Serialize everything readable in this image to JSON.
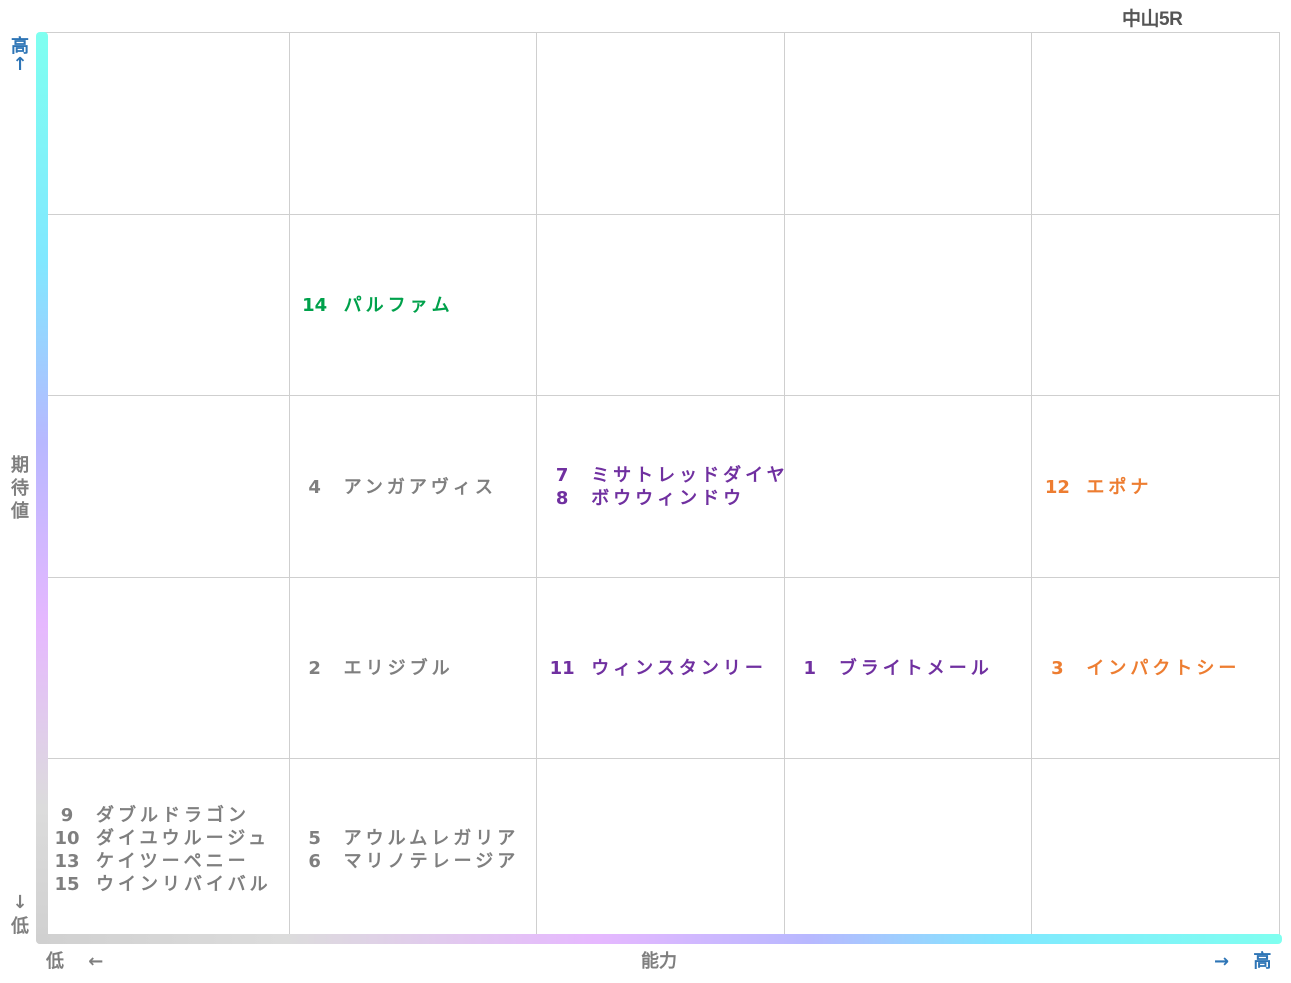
{
  "title": "中山5R",
  "axes": {
    "y_label": "期待値",
    "y_high": "高",
    "y_high_arrow": "↑",
    "y_low": "低",
    "y_low_arrow": "↓",
    "x_label": "能力",
    "x_low": "低",
    "x_low_arrow": "←",
    "x_high": "高",
    "x_high_arrow": "→"
  },
  "colors": {
    "gray": "#7f7f7f",
    "green": "#00a14b",
    "purple": "#7030a0",
    "orange": "#ed7d31",
    "axis_blue": "#2e75b6",
    "grid": "#cfcfcf"
  },
  "chart_data": {
    "type": "table",
    "x_axis": "能力",
    "y_axis": "期待値",
    "columns": 5,
    "rows": 5,
    "points": [
      {
        "num": "14",
        "name": "パルファム",
        "x": 2,
        "y": 4,
        "color": "green"
      },
      {
        "num": "4",
        "name": "アンガアヴィス",
        "x": 2,
        "y": 3,
        "color": "gray"
      },
      {
        "num": "7",
        "name": "ミサトレッドダイヤ",
        "x": 3,
        "y": 3,
        "color": "purple"
      },
      {
        "num": "8",
        "name": "ボウウィンドウ",
        "x": 3,
        "y": 3,
        "color": "purple"
      },
      {
        "num": "12",
        "name": "エポナ",
        "x": 5,
        "y": 3,
        "color": "orange"
      },
      {
        "num": "2",
        "name": "エリジブル",
        "x": 2,
        "y": 2,
        "color": "gray"
      },
      {
        "num": "11",
        "name": "ウィンスタンリー",
        "x": 3,
        "y": 2,
        "color": "purple"
      },
      {
        "num": "1",
        "name": "ブライトメール",
        "x": 4,
        "y": 2,
        "color": "purple"
      },
      {
        "num": "3",
        "name": "インパクトシー",
        "x": 5,
        "y": 2,
        "color": "orange"
      },
      {
        "num": "9",
        "name": "ダブルドラゴン",
        "x": 1,
        "y": 1,
        "color": "gray"
      },
      {
        "num": "10",
        "name": "ダイユウルージュ",
        "x": 1,
        "y": 1,
        "color": "gray"
      },
      {
        "num": "13",
        "name": "ケイツーペニー",
        "x": 1,
        "y": 1,
        "color": "gray"
      },
      {
        "num": "15",
        "name": "ウインリバイバル",
        "x": 1,
        "y": 1,
        "color": "gray"
      },
      {
        "num": "5",
        "name": "アウルムレガリア",
        "x": 2,
        "y": 1,
        "color": "gray"
      },
      {
        "num": "6",
        "name": "マリノテレージア",
        "x": 2,
        "y": 1,
        "color": "gray"
      }
    ]
  }
}
